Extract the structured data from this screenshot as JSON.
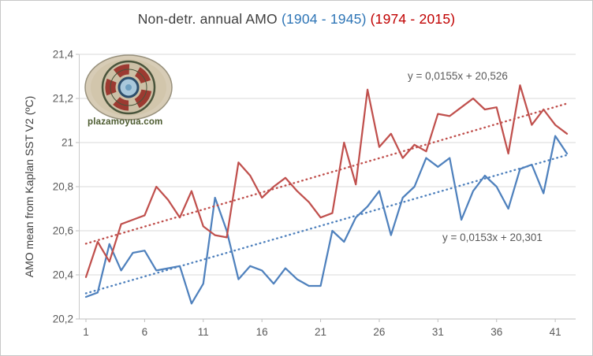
{
  "title": {
    "prefix": "Non-detr. annual AMO ",
    "period1": "(1904 - 1945)",
    "period2": "(1974 - 2015)"
  },
  "colors": {
    "series_blue": "#4F81BD",
    "series_red": "#C0504D",
    "title_period1": "#2E75B6",
    "title_period2": "#C00000",
    "gridline": "#D9D9D9",
    "axis_line": "#BFBFBF",
    "axis_text": "#595959"
  },
  "y_axis": {
    "label": "AMO mean from Kaplan SST V2 (ºC)",
    "min": 20.2,
    "max": 21.4,
    "step": 0.2,
    "tick_labels": [
      "20,2",
      "20,4",
      "20,6",
      "20,8",
      "21",
      "21,2",
      "21,4"
    ]
  },
  "x_axis": {
    "min": 1,
    "max": 42,
    "tick_values": [
      1,
      6,
      11,
      16,
      21,
      26,
      31,
      36,
      41
    ],
    "tick_labels": [
      "1",
      "6",
      "11",
      "16",
      "21",
      "26",
      "31",
      "36",
      "41"
    ]
  },
  "watermark": {
    "text": "plazamoyua.com"
  },
  "annotations": {
    "red_equation": "y = 0,0155x + 20,526",
    "blue_equation": "y = 0,0153x + 20,301"
  },
  "chart_data": {
    "type": "line",
    "title": "Non-detr. annual AMO (1904 - 1945) (1974 - 2015)",
    "xlabel": "",
    "ylabel": "AMO mean from Kaplan SST V2 (ºC)",
    "ylim": [
      20.2,
      21.4
    ],
    "xlim": [
      1,
      42
    ],
    "grid": "horizontal",
    "legend": "none",
    "x": [
      1,
      2,
      3,
      4,
      5,
      6,
      7,
      8,
      9,
      10,
      11,
      12,
      13,
      14,
      15,
      16,
      17,
      18,
      19,
      20,
      21,
      22,
      23,
      24,
      25,
      26,
      27,
      28,
      29,
      30,
      31,
      32,
      33,
      34,
      35,
      36,
      37,
      38,
      39,
      40,
      41,
      42
    ],
    "series": [
      {
        "name": "AMO 1904 - 1945",
        "color": "#4F81BD",
        "values": [
          20.3,
          20.32,
          20.54,
          20.42,
          20.5,
          20.51,
          20.42,
          20.43,
          20.44,
          20.27,
          20.36,
          20.75,
          20.6,
          20.38,
          20.44,
          20.42,
          20.36,
          20.43,
          20.38,
          20.35,
          20.35,
          20.6,
          20.55,
          20.66,
          20.71,
          20.78,
          20.58,
          20.75,
          20.8,
          20.93,
          20.89,
          20.93,
          20.65,
          20.78,
          20.85,
          20.8,
          20.7,
          20.88,
          20.9,
          20.77,
          21.03,
          20.95
        ]
      },
      {
        "name": "AMO 1974 - 2015",
        "color": "#C0504D",
        "values": [
          20.39,
          20.55,
          20.46,
          20.63,
          20.65,
          20.67,
          20.8,
          20.74,
          20.66,
          20.78,
          20.62,
          20.58,
          20.57,
          20.91,
          20.85,
          20.75,
          20.8,
          20.84,
          20.78,
          20.73,
          20.66,
          20.68,
          21.0,
          20.81,
          21.24,
          20.98,
          21.04,
          20.93,
          20.99,
          20.96,
          21.13,
          21.12,
          21.16,
          21.2,
          21.15,
          21.16,
          20.95,
          21.26,
          21.08,
          21.15,
          21.08,
          21.04
        ]
      }
    ],
    "trendlines": [
      {
        "series": "AMO 1904 - 1945",
        "equation": "y = 0,0153x + 20,301",
        "slope": 0.0153,
        "intercept": 20.301,
        "color": "#4F81BD",
        "style": "dotted"
      },
      {
        "series": "AMO 1974 - 2015",
        "equation": "y = 0,0155x + 20,526",
        "slope": 0.0155,
        "intercept": 20.526,
        "color": "#C0504D",
        "style": "dotted"
      }
    ]
  }
}
